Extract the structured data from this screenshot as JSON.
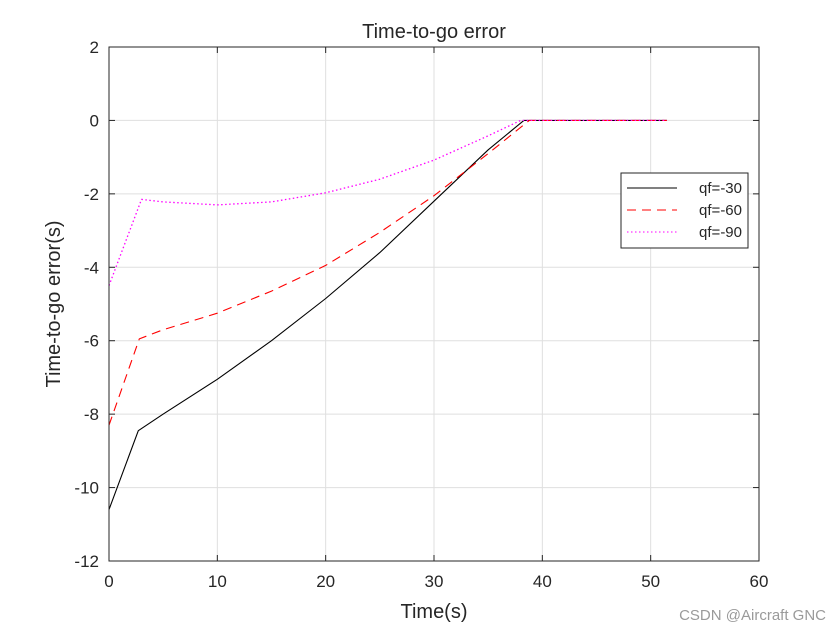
{
  "watermark": "CSDN @Aircraft GNC",
  "colors": {
    "series_qf30": "#000000",
    "series_qf60": "#ff0000",
    "series_qf90": "#ff00ff",
    "grid": "#dfdfdf",
    "axes": "#262626"
  },
  "chart_data": {
    "type": "line",
    "title": "Time-to-go error",
    "xlabel": "Time(s)",
    "ylabel": "Time-to-go error(s)",
    "xlim": [
      0,
      60
    ],
    "ylim": [
      -12,
      2
    ],
    "xticks": [
      0,
      10,
      20,
      30,
      40,
      50,
      60
    ],
    "yticks": [
      -12,
      -10,
      -8,
      -6,
      -4,
      -2,
      0,
      2
    ],
    "grid": true,
    "legend_placement": "right",
    "series": [
      {
        "name": "qf=-30",
        "color": "#000000",
        "line_style": "solid",
        "x": [
          0,
          2.7,
          5,
          10,
          15,
          20,
          25,
          30,
          35,
          38.3,
          40,
          45,
          51.5
        ],
        "y": [
          -10.6,
          -8.45,
          -8.0,
          -7.05,
          -6.0,
          -4.85,
          -3.6,
          -2.2,
          -0.8,
          0,
          0,
          0,
          0
        ]
      },
      {
        "name": "qf=-60",
        "color": "#ff0000",
        "line_style": "dashed",
        "x": [
          0,
          2.8,
          5,
          10,
          15,
          20,
          25,
          30,
          35,
          38.8,
          40,
          45,
          51.5
        ],
        "y": [
          -8.3,
          -5.95,
          -5.7,
          -5.25,
          -4.65,
          -3.95,
          -3.05,
          -2.05,
          -0.9,
          0,
          0,
          0,
          0
        ]
      },
      {
        "name": "qf=-90",
        "color": "#ff00ff",
        "line_style": "dotted",
        "x": [
          0,
          3.0,
          5,
          10,
          15,
          20,
          25,
          30,
          35,
          38.0,
          40,
          45,
          51.5
        ],
        "y": [
          -4.5,
          -2.15,
          -2.22,
          -2.3,
          -2.22,
          -1.97,
          -1.6,
          -1.08,
          -0.42,
          0,
          0,
          0,
          0
        ]
      }
    ]
  }
}
